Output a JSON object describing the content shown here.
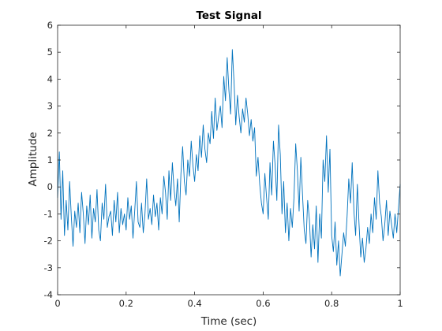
{
  "chart_data": {
    "type": "line",
    "title": "Test Signal",
    "xlabel": "Time (sec)",
    "ylabel": "Amplitude",
    "xlim": [
      0,
      1
    ],
    "ylim": [
      -4,
      6
    ],
    "xticks": [
      0,
      0.2,
      0.4,
      0.6,
      0.8,
      1
    ],
    "xtick_labels": [
      "0",
      "0.2",
      "0.4",
      "0.6",
      "0.8",
      "1"
    ],
    "yticks": [
      -4,
      -3,
      -2,
      -1,
      0,
      1,
      2,
      3,
      4,
      5,
      6
    ],
    "ytick_labels": [
      "-4",
      "-3",
      "-2",
      "-1",
      "0",
      "1",
      "2",
      "3",
      "4",
      "5",
      "6"
    ],
    "grid": false,
    "box": true,
    "series": [
      {
        "color": "#0072BD",
        "x": [
          0,
          0.005,
          0.01,
          0.015,
          0.02,
          0.025,
          0.03,
          0.035,
          0.04,
          0.045,
          0.05,
          0.055,
          0.06,
          0.065,
          0.07,
          0.075,
          0.08,
          0.085,
          0.09,
          0.095,
          0.1,
          0.105,
          0.11,
          0.115,
          0.12,
          0.125,
          0.13,
          0.135,
          0.14,
          0.145,
          0.15,
          0.155,
          0.16,
          0.165,
          0.17,
          0.175,
          0.18,
          0.185,
          0.19,
          0.195,
          0.2,
          0.205,
          0.21,
          0.215,
          0.22,
          0.225,
          0.23,
          0.235,
          0.24,
          0.245,
          0.25,
          0.255,
          0.26,
          0.265,
          0.27,
          0.275,
          0.28,
          0.285,
          0.29,
          0.295,
          0.3,
          0.305,
          0.31,
          0.315,
          0.32,
          0.325,
          0.33,
          0.335,
          0.34,
          0.345,
          0.35,
          0.355,
          0.36,
          0.365,
          0.37,
          0.375,
          0.38,
          0.385,
          0.39,
          0.395,
          0.4,
          0.405,
          0.41,
          0.415,
          0.42,
          0.425,
          0.43,
          0.435,
          0.44,
          0.445,
          0.45,
          0.455,
          0.46,
          0.465,
          0.47,
          0.475,
          0.48,
          0.485,
          0.49,
          0.495,
          0.5,
          0.505,
          0.51,
          0.515,
          0.52,
          0.525,
          0.53,
          0.535,
          0.54,
          0.545,
          0.55,
          0.555,
          0.56,
          0.565,
          0.57,
          0.575,
          0.58,
          0.585,
          0.59,
          0.595,
          0.6,
          0.605,
          0.61,
          0.615,
          0.62,
          0.625,
          0.63,
          0.635,
          0.64,
          0.645,
          0.65,
          0.655,
          0.66,
          0.665,
          0.67,
          0.675,
          0.68,
          0.685,
          0.69,
          0.695,
          0.7,
          0.705,
          0.71,
          0.715,
          0.72,
          0.725,
          0.73,
          0.735,
          0.74,
          0.745,
          0.75,
          0.755,
          0.76,
          0.765,
          0.77,
          0.775,
          0.78,
          0.785,
          0.79,
          0.795,
          0.8,
          0.805,
          0.81,
          0.815,
          0.82,
          0.825,
          0.83,
          0.835,
          0.84,
          0.845,
          0.85,
          0.855,
          0.86,
          0.865,
          0.87,
          0.875,
          0.88,
          0.885,
          0.89,
          0.895,
          0.9,
          0.905,
          0.91,
          0.915,
          0.92,
          0.925,
          0.93,
          0.935,
          0.94,
          0.945,
          0.95,
          0.955,
          0.96,
          0.965,
          0.97,
          0.975,
          0.98,
          0.985,
          0.99,
          0.995,
          1
        ],
        "y": [
          -0.4,
          1.3,
          -1.2,
          0.6,
          -1.8,
          -0.5,
          -1.6,
          0.2,
          -1.1,
          -2.2,
          -0.9,
          -1.5,
          -0.6,
          -1.7,
          -0.2,
          -1.0,
          -2.1,
          -0.7,
          -1.4,
          -0.3,
          -1.9,
          -0.8,
          -1.3,
          -0.1,
          -1.6,
          -2.0,
          -0.6,
          -1.2,
          0.1,
          -1.5,
          -1.1,
          -0.9,
          -1.8,
          -0.5,
          -1.3,
          -0.2,
          -1.7,
          -0.8,
          -1.4,
          -1.0,
          -1.6,
          -0.4,
          -1.2,
          -0.7,
          -1.9,
          -0.9,
          0.2,
          -1.3,
          -1.5,
          -0.6,
          -1.7,
          -1.0,
          0.3,
          -1.2,
          -0.8,
          -1.4,
          -0.3,
          -1.1,
          -0.6,
          -1.6,
          -0.4,
          -1.0,
          0.4,
          -0.2,
          -1.2,
          0.6,
          -0.5,
          0.9,
          -0.1,
          -0.7,
          0.3,
          -1.3,
          0.5,
          1.5,
          0.2,
          -0.3,
          1.0,
          0.4,
          1.7,
          0.8,
          0.2,
          1.2,
          0.6,
          1.9,
          1.1,
          2.3,
          1.4,
          0.9,
          2.0,
          1.6,
          2.8,
          1.8,
          3.3,
          2.1,
          2.6,
          3.0,
          2.2,
          4.1,
          3.2,
          4.8,
          3.6,
          2.7,
          5.1,
          3.9,
          2.3,
          3.4,
          2.6,
          2.0,
          2.9,
          2.4,
          3.3,
          2.7,
          1.9,
          2.5,
          1.7,
          2.2,
          0.4,
          1.1,
          0.1,
          -0.6,
          -1.0,
          0.5,
          -0.4,
          -1.2,
          0.9,
          -0.3,
          1.7,
          0.8,
          -0.5,
          2.3,
          1.2,
          -1.0,
          0.2,
          -1.7,
          -0.6,
          -2.0,
          -0.8,
          -1.5,
          -0.4,
          1.6,
          0.6,
          -0.9,
          1.1,
          -0.3,
          -1.6,
          -2.1,
          -0.5,
          -1.2,
          -2.6,
          -1.4,
          -2.3,
          -0.7,
          -2.8,
          -1.0,
          -1.9,
          1.0,
          0.2,
          1.9,
          -0.2,
          1.4,
          -1.8,
          -2.4,
          -1.3,
          -2.9,
          -2.0,
          -3.3,
          -2.5,
          -1.7,
          -2.2,
          -1.1,
          0.3,
          -0.6,
          0.9,
          -0.9,
          -1.8,
          0.1,
          -1.4,
          -2.6,
          -1.9,
          -2.8,
          -2.3,
          -1.5,
          -2.1,
          -1.0,
          -1.7,
          -0.4,
          -1.2,
          0.6,
          -0.6,
          -1.1,
          -2.0,
          -1.4,
          -0.5,
          -1.8,
          -0.9,
          -1.4,
          -1.9,
          -1.0,
          -1.7,
          -0.8,
          0.1
        ]
      }
    ]
  }
}
